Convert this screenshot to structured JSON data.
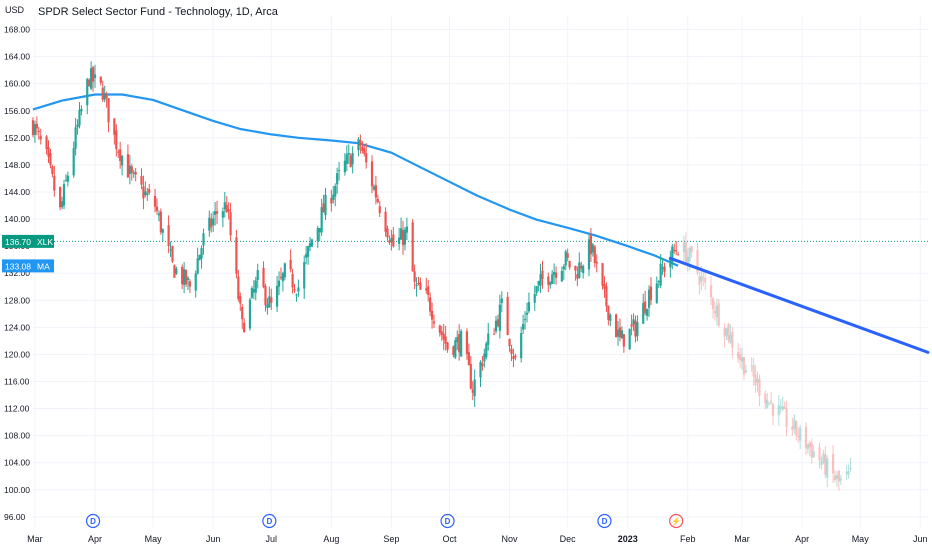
{
  "header": {
    "currency": "USD",
    "title": "SPDR Select Sector Fund - Technology, 1D, Arca"
  },
  "colors": {
    "up": "#26a69a",
    "down": "#ef5350",
    "ma_line": "#2196f3",
    "trend_line": "#2962ff",
    "grid": "#f0f3fa",
    "axis_text": "#131722",
    "price_tag": "#089981"
  },
  "price_tags": {
    "last": {
      "value": "136.70",
      "symbol": "XLK"
    },
    "ma": {
      "value": "133.08",
      "label": "MA"
    }
  },
  "event_markers": [
    {
      "date": "2022-03-31",
      "icon": "dividend-icon",
      "label": "D"
    },
    {
      "date": "2022-06-30",
      "icon": "dividend-icon",
      "label": "D"
    },
    {
      "date": "2022-09-30",
      "icon": "dividend-icon",
      "label": "D"
    },
    {
      "date": "2022-12-20",
      "icon": "dividend-icon",
      "label": "D"
    },
    {
      "date": "2023-01-26",
      "icon": "lightning-icon",
      "label": "⚡"
    }
  ],
  "chart_data": {
    "type": "candlestick",
    "title": "SPDR Select Sector Fund - Technology, 1D, Arca",
    "y_ticks": [
      "96.00",
      "100.00",
      "104.00",
      "108.00",
      "112.00",
      "116.00",
      "120.00",
      "124.00",
      "128.00",
      "132.00",
      "136.00",
      "140.00",
      "144.00",
      "148.00",
      "152.00",
      "156.00",
      "160.00",
      "164.00",
      "168.00"
    ],
    "ylim": [
      94.5,
      170
    ],
    "x_ticks": [
      {
        "label": "Mar",
        "date": "2022-03-01"
      },
      {
        "label": "Apr",
        "date": "2022-04-01"
      },
      {
        "label": "May",
        "date": "2022-05-01"
      },
      {
        "label": "Jun",
        "date": "2022-06-01"
      },
      {
        "label": "Jul",
        "date": "2022-07-01"
      },
      {
        "label": "Aug",
        "date": "2022-08-01"
      },
      {
        "label": "Sep",
        "date": "2022-09-01"
      },
      {
        "label": "Oct",
        "date": "2022-10-01"
      },
      {
        "label": "Nov",
        "date": "2022-11-01"
      },
      {
        "label": "Dec",
        "date": "2022-12-01"
      },
      {
        "label": "2023",
        "date": "2023-01-01"
      },
      {
        "label": "Feb",
        "date": "2023-02-01"
      },
      {
        "label": "Mar",
        "date": "2023-03-01"
      },
      {
        "label": "Apr",
        "date": "2023-04-01"
      },
      {
        "label": "May",
        "date": "2023-05-01"
      },
      {
        "label": "Jun",
        "date": "2023-06-01"
      }
    ],
    "xlim": [
      "2022-02-28",
      "2023-06-05"
    ],
    "price_keypoints": [
      [
        "2022-02-28",
        154
      ],
      [
        "2022-03-07",
        149
      ],
      [
        "2022-03-14",
        141
      ],
      [
        "2022-03-21",
        151
      ],
      [
        "2022-03-29",
        161
      ],
      [
        "2022-04-05",
        159
      ],
      [
        "2022-04-11",
        152
      ],
      [
        "2022-04-20",
        146
      ],
      [
        "2022-05-02",
        142
      ],
      [
        "2022-05-11",
        133
      ],
      [
        "2022-05-20",
        130
      ],
      [
        "2022-05-27",
        137
      ],
      [
        "2022-06-03",
        141
      ],
      [
        "2022-06-08",
        142
      ],
      [
        "2022-06-16",
        124
      ],
      [
        "2022-06-24",
        131
      ],
      [
        "2022-07-01",
        127
      ],
      [
        "2022-07-08",
        132
      ],
      [
        "2022-07-15",
        130
      ],
      [
        "2022-07-22",
        137
      ],
      [
        "2022-07-29",
        142
      ],
      [
        "2022-08-08",
        148
      ],
      [
        "2022-08-16",
        151
      ],
      [
        "2022-08-19",
        148
      ],
      [
        "2022-08-26",
        142
      ],
      [
        "2022-09-02",
        136
      ],
      [
        "2022-09-09",
        138
      ],
      [
        "2022-09-13",
        130
      ],
      [
        "2022-09-20",
        128
      ],
      [
        "2022-09-30",
        121
      ],
      [
        "2022-10-07",
        122
      ],
      [
        "2022-10-13",
        115
      ],
      [
        "2022-10-21",
        122
      ],
      [
        "2022-10-28",
        127
      ],
      [
        "2022-11-04",
        119
      ],
      [
        "2022-11-10",
        127
      ],
      [
        "2022-11-18",
        131
      ],
      [
        "2022-11-30",
        134
      ],
      [
        "2022-12-05",
        132
      ],
      [
        "2022-12-13",
        136
      ],
      [
        "2022-12-19",
        129
      ],
      [
        "2022-12-28",
        122
      ],
      [
        "2023-01-05",
        124
      ],
      [
        "2023-01-12",
        129
      ],
      [
        "2023-01-20",
        133
      ],
      [
        "2023-01-27",
        136
      ],
      [
        "2023-02-03",
        134
      ],
      [
        "2023-02-15",
        127
      ],
      [
        "2023-03-01",
        119
      ],
      [
        "2023-03-15",
        113
      ],
      [
        "2023-04-03",
        107
      ],
      [
        "2023-04-20",
        101
      ],
      [
        "2023-04-26",
        102
      ]
    ],
    "ma_series": {
      "name": "MA",
      "points": [
        [
          "2022-02-28",
          156.2
        ],
        [
          "2022-03-15",
          157.5
        ],
        [
          "2022-04-01",
          158.4
        ],
        [
          "2022-04-15",
          158.4
        ],
        [
          "2022-05-01",
          157.6
        ],
        [
          "2022-05-15",
          156.2
        ],
        [
          "2022-06-01",
          154.5
        ],
        [
          "2022-06-15",
          153.3
        ],
        [
          "2022-07-01",
          152.5
        ],
        [
          "2022-07-15",
          152.0
        ],
        [
          "2022-08-01",
          151.6
        ],
        [
          "2022-08-15",
          151.2
        ],
        [
          "2022-09-01",
          149.8
        ],
        [
          "2022-09-15",
          147.8
        ],
        [
          "2022-10-01",
          145.5
        ],
        [
          "2022-10-15",
          143.5
        ],
        [
          "2022-11-01",
          141.4
        ],
        [
          "2022-11-15",
          139.9
        ],
        [
          "2022-12-01",
          138.7
        ],
        [
          "2022-12-15",
          137.6
        ],
        [
          "2023-01-01",
          136.0
        ],
        [
          "2023-01-15",
          134.6
        ],
        [
          "2023-01-27",
          133.1
        ]
      ]
    },
    "trend_line": {
      "start": [
        "2023-01-23",
        134.2
      ],
      "end": [
        "2023-06-05",
        120.3
      ]
    },
    "grid": true
  }
}
